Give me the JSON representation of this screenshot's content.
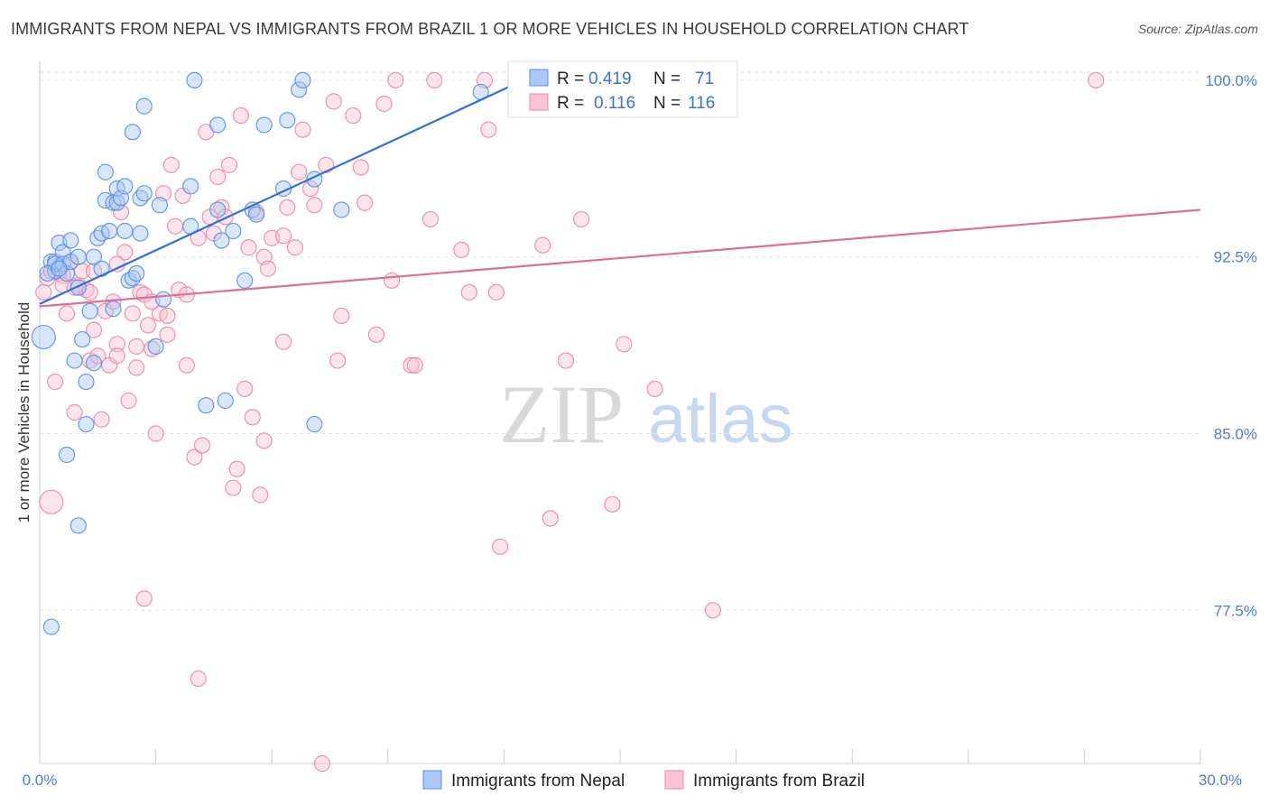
{
  "title": "IMMIGRANTS FROM NEPAL VS IMMIGRANTS FROM BRAZIL 1 OR MORE VEHICLES IN HOUSEHOLD CORRELATION CHART",
  "source": "Source: ZipAtlas.com",
  "watermark": {
    "zip": "ZIP",
    "atlas": "atlas"
  },
  "colors": {
    "nepal_fill": "#a9c8f5",
    "nepal_stroke": "#5b8fe0",
    "nepal_line": "#2f72d0",
    "brazil_fill": "#f8c3d5",
    "brazil_stroke": "#e58aaa",
    "brazil_line": "#e06c98",
    "axis_text": "#4a7fd0"
  },
  "chart_data": {
    "type": "scatter",
    "xlabel": "",
    "ylabel": "1 or more Vehicles in Household",
    "xlim": [
      0.0,
      30.0
    ],
    "ylim": [
      71.0,
      100.8
    ],
    "x_tick_labels": [
      "0.0%",
      "30.0%"
    ],
    "y_ticks": [
      100.0,
      92.5,
      85.0,
      77.5
    ],
    "y_tick_labels": [
      "100.0%",
      "92.5%",
      "85.0%",
      "77.5%"
    ],
    "grid": true,
    "legend": [
      {
        "r_label": "R =",
        "r": "0.419",
        "n_label": "N =",
        "n": "71"
      },
      {
        "r_label": "R =",
        "r": "0.116",
        "n_label": "N =",
        "n": "116"
      }
    ],
    "series": [
      {
        "name": "Immigrants from Nepal",
        "trend": {
          "x": [
            0.0,
            12.5
          ],
          "y": [
            90.5,
            100.0
          ]
        },
        "points": [
          [
            0.1,
            89.1,
            2
          ],
          [
            0.3,
            76.8,
            1
          ],
          [
            0.3,
            92.3,
            1
          ],
          [
            0.4,
            91.9,
            1
          ],
          [
            0.4,
            92.3,
            1
          ],
          [
            0.4,
            92.2,
            1
          ],
          [
            0.5,
            93.1,
            1
          ],
          [
            0.6,
            92.7,
            1
          ],
          [
            0.6,
            92.2,
            1
          ],
          [
            0.7,
            91.8,
            1
          ],
          [
            0.7,
            84.1,
            1
          ],
          [
            0.8,
            92.3,
            1
          ],
          [
            0.8,
            93.2,
            1
          ],
          [
            0.9,
            88.1,
            1
          ],
          [
            1.0,
            92.5,
            1
          ],
          [
            1.0,
            91.2,
            1
          ],
          [
            1.0,
            81.1,
            1
          ],
          [
            1.1,
            89.0,
            1
          ],
          [
            1.2,
            87.2,
            1
          ],
          [
            1.2,
            85.4,
            1
          ],
          [
            1.3,
            90.2,
            1
          ],
          [
            1.4,
            92.5,
            1
          ],
          [
            1.4,
            88.0,
            1
          ],
          [
            1.5,
            93.3,
            1
          ],
          [
            1.6,
            93.5,
            1
          ],
          [
            1.7,
            96.1,
            1
          ],
          [
            1.7,
            94.9,
            1
          ],
          [
            1.8,
            93.6,
            1
          ],
          [
            1.9,
            94.8,
            1
          ],
          [
            1.9,
            90.3,
            1
          ],
          [
            2.0,
            95.4,
            1
          ],
          [
            2.0,
            94.8,
            1
          ],
          [
            2.1,
            95.0,
            1
          ],
          [
            2.2,
            95.5,
            1
          ],
          [
            2.2,
            93.6,
            1
          ],
          [
            2.3,
            91.5,
            1
          ],
          [
            2.4,
            97.8,
            1
          ],
          [
            2.4,
            91.6,
            1
          ],
          [
            2.5,
            91.8,
            1
          ],
          [
            2.6,
            95.0,
            1
          ],
          [
            2.6,
            93.5,
            1
          ],
          [
            2.7,
            95.2,
            1
          ],
          [
            2.7,
            98.9,
            1
          ],
          [
            3.0,
            88.7,
            1
          ],
          [
            3.1,
            94.7,
            1
          ],
          [
            3.2,
            90.7,
            1
          ],
          [
            3.9,
            95.5,
            1
          ],
          [
            3.9,
            93.8,
            1
          ],
          [
            4.0,
            100.0,
            1
          ],
          [
            4.3,
            86.2,
            1
          ],
          [
            4.6,
            98.1,
            1
          ],
          [
            4.6,
            94.5,
            1
          ],
          [
            4.7,
            93.2,
            1
          ],
          [
            4.8,
            86.4,
            1
          ],
          [
            5.0,
            93.6,
            1
          ],
          [
            5.3,
            91.5,
            1
          ],
          [
            5.5,
            94.5,
            1
          ],
          [
            5.6,
            94.3,
            1
          ],
          [
            5.8,
            98.1,
            1
          ],
          [
            6.3,
            95.4,
            1
          ],
          [
            6.4,
            98.3,
            1
          ],
          [
            6.7,
            99.6,
            1
          ],
          [
            6.8,
            100.0,
            1
          ],
          [
            7.1,
            85.4,
            1
          ],
          [
            7.1,
            95.8,
            1
          ],
          [
            7.8,
            94.5,
            1
          ],
          [
            11.4,
            99.5,
            1
          ],
          [
            12.6,
            100.0,
            1
          ],
          [
            0.2,
            91.8,
            1
          ],
          [
            0.5,
            92.0,
            1
          ],
          [
            1.6,
            92.0,
            1
          ]
        ]
      },
      {
        "name": "Immigrants from Brazil",
        "trend": {
          "x": [
            0.0,
            30.0
          ],
          "y": [
            90.4,
            94.5
          ]
        },
        "points": [
          [
            0.1,
            91.0,
            1
          ],
          [
            0.2,
            91.6,
            1
          ],
          [
            0.3,
            91.9,
            1
          ],
          [
            0.3,
            82.1,
            2
          ],
          [
            0.4,
            87.2,
            1
          ],
          [
            0.5,
            92.1,
            1
          ],
          [
            0.5,
            91.8,
            1
          ],
          [
            0.6,
            91.7,
            1
          ],
          [
            0.6,
            91.3,
            1
          ],
          [
            0.7,
            90.1,
            1
          ],
          [
            0.8,
            92.3,
            1
          ],
          [
            0.9,
            85.9,
            1
          ],
          [
            1.0,
            91.3,
            1
          ],
          [
            1.1,
            91.9,
            1
          ],
          [
            1.2,
            91.1,
            1
          ],
          [
            1.3,
            88.1,
            1
          ],
          [
            1.4,
            91.9,
            1
          ],
          [
            1.4,
            89.4,
            1
          ],
          [
            1.5,
            88.3,
            1
          ],
          [
            1.6,
            85.6,
            1
          ],
          [
            1.7,
            90.2,
            1
          ],
          [
            1.8,
            87.9,
            1
          ],
          [
            1.9,
            90.6,
            1
          ],
          [
            2.0,
            88.8,
            1
          ],
          [
            2.0,
            88.3,
            1
          ],
          [
            2.1,
            94.4,
            1
          ],
          [
            2.2,
            92.7,
            1
          ],
          [
            2.3,
            86.4,
            1
          ],
          [
            2.4,
            90.1,
            1
          ],
          [
            2.5,
            87.8,
            1
          ],
          [
            2.5,
            88.7,
            1
          ],
          [
            2.6,
            91.0,
            1
          ],
          [
            2.7,
            90.9,
            1
          ],
          [
            2.7,
            78.0,
            1
          ],
          [
            2.8,
            89.6,
            1
          ],
          [
            2.9,
            88.6,
            1
          ],
          [
            3.0,
            85.0,
            1
          ],
          [
            3.1,
            90.1,
            1
          ],
          [
            3.2,
            95.2,
            1
          ],
          [
            3.3,
            89.2,
            1
          ],
          [
            3.3,
            90.0,
            1
          ],
          [
            3.4,
            96.4,
            1
          ],
          [
            3.5,
            93.8,
            1
          ],
          [
            3.6,
            91.1,
            1
          ],
          [
            3.7,
            95.1,
            1
          ],
          [
            3.8,
            87.9,
            1
          ],
          [
            3.8,
            90.9,
            1
          ],
          [
            4.0,
            84.0,
            1
          ],
          [
            4.1,
            93.3,
            1
          ],
          [
            4.1,
            74.6,
            1
          ],
          [
            4.2,
            84.5,
            1
          ],
          [
            4.3,
            97.8,
            1
          ],
          [
            4.4,
            94.2,
            1
          ],
          [
            4.5,
            93.5,
            1
          ],
          [
            4.6,
            95.9,
            1
          ],
          [
            4.7,
            94.6,
            1
          ],
          [
            4.8,
            94.2,
            1
          ],
          [
            4.9,
            96.4,
            1
          ],
          [
            5.0,
            82.7,
            1
          ],
          [
            5.1,
            83.5,
            1
          ],
          [
            5.2,
            98.5,
            1
          ],
          [
            5.3,
            86.9,
            1
          ],
          [
            5.4,
            92.9,
            1
          ],
          [
            5.5,
            85.7,
            1
          ],
          [
            5.6,
            94.4,
            1
          ],
          [
            5.7,
            82.4,
            1
          ],
          [
            5.8,
            84.7,
            1
          ],
          [
            5.8,
            92.5,
            1
          ],
          [
            5.9,
            92.0,
            1
          ],
          [
            6.0,
            93.3,
            1
          ],
          [
            6.3,
            93.4,
            1
          ],
          [
            6.3,
            88.9,
            1
          ],
          [
            6.4,
            94.6,
            1
          ],
          [
            6.6,
            92.9,
            1
          ],
          [
            6.7,
            96.1,
            1
          ],
          [
            6.8,
            97.9,
            1
          ],
          [
            7.0,
            95.4,
            1
          ],
          [
            7.1,
            94.7,
            1
          ],
          [
            7.3,
            71.0,
            1
          ],
          [
            7.4,
            96.4,
            1
          ],
          [
            7.6,
            99.1,
            1
          ],
          [
            7.7,
            88.1,
            1
          ],
          [
            7.8,
            90.0,
            1
          ],
          [
            8.1,
            98.5,
            1
          ],
          [
            8.3,
            96.3,
            1
          ],
          [
            8.4,
            94.8,
            1
          ],
          [
            8.7,
            89.2,
            1
          ],
          [
            8.9,
            99.0,
            1
          ],
          [
            9.1,
            91.5,
            1
          ],
          [
            9.6,
            87.9,
            1
          ],
          [
            9.7,
            87.9,
            1
          ],
          [
            10.1,
            94.1,
            1
          ],
          [
            10.2,
            100.0,
            1
          ],
          [
            10.9,
            92.8,
            1
          ],
          [
            11.1,
            91.0,
            1
          ],
          [
            11.5,
            100.0,
            1
          ],
          [
            11.6,
            97.9,
            1
          ],
          [
            11.8,
            91.0,
            1
          ],
          [
            11.9,
            80.2,
            1
          ],
          [
            12.3,
            100.0,
            1
          ],
          [
            12.7,
            100.0,
            1
          ],
          [
            13.0,
            93.0,
            1
          ],
          [
            13.2,
            81.4,
            1
          ],
          [
            13.6,
            88.1,
            1
          ],
          [
            14.0,
            94.1,
            1
          ],
          [
            14.8,
            82.0,
            1
          ],
          [
            15.1,
            88.8,
            1
          ],
          [
            15.9,
            86.9,
            1
          ],
          [
            17.4,
            77.5,
            1
          ],
          [
            27.3,
            100.0,
            1
          ],
          [
            0.9,
            91.2,
            1
          ],
          [
            1.3,
            91.0,
            1
          ],
          [
            2.0,
            92.2,
            1
          ],
          [
            2.9,
            90.6,
            1
          ],
          [
            9.2,
            100.0,
            1
          ]
        ]
      }
    ]
  }
}
